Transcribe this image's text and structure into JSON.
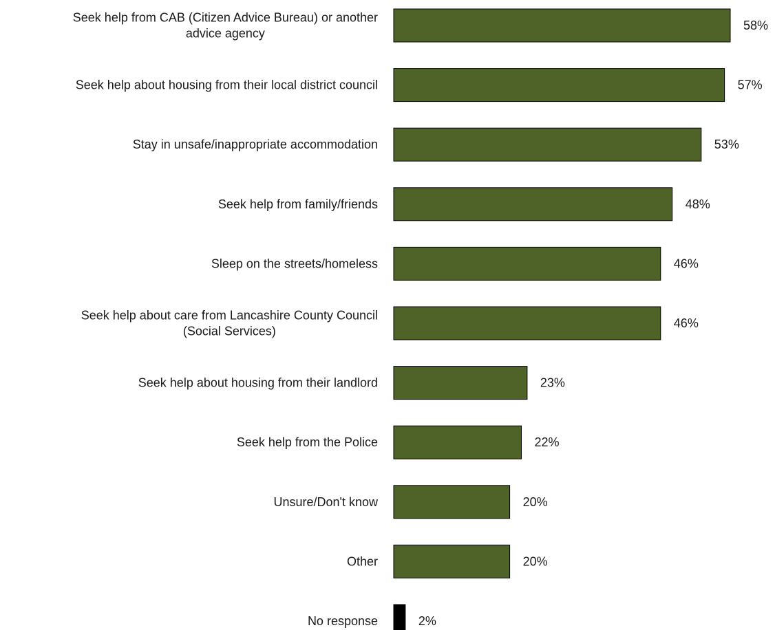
{
  "chart_data": {
    "type": "bar",
    "orientation": "horizontal",
    "categories": [
      "Seek help from CAB (Citizen Advice Bureau) or another advice agency",
      "Seek help about housing from their local district council",
      "Stay in unsafe/inappropriate accommodation",
      "Seek help from family/friends",
      "Sleep on the streets/homeless",
      "Seek help about care from Lancashire County Council (Social Services)",
      "Seek help about housing from their landlord",
      "Seek help from the Police",
      "Unsure/Don't know",
      "Other",
      "No response"
    ],
    "category_lines": [
      [
        "Seek help from CAB (Citizen Advice Bureau) or another",
        "advice agency"
      ],
      [
        "Seek help about housing from their local district council"
      ],
      [
        "Stay in unsafe/inappropriate accommodation"
      ],
      [
        "Seek help from family/friends"
      ],
      [
        "Sleep on the streets/homeless"
      ],
      [
        "Seek help about care from Lancashire County Council",
        "(Social Services)"
      ],
      [
        "Seek help about housing from their landlord"
      ],
      [
        "Seek help from the Police"
      ],
      [
        "Unsure/Don't know"
      ],
      [
        "Other"
      ],
      [
        "No response"
      ]
    ],
    "values": [
      58,
      57,
      53,
      48,
      46,
      46,
      23,
      22,
      20,
      20,
      2
    ],
    "value_labels": [
      "58%",
      "57%",
      "53%",
      "48%",
      "46%",
      "46%",
      "23%",
      "22%",
      "20%",
      "20%",
      "2%"
    ],
    "bar_colors": [
      "#4f6228",
      "#4f6228",
      "#4f6228",
      "#4f6228",
      "#4f6228",
      "#4f6228",
      "#4f6228",
      "#4f6228",
      "#4f6228",
      "#4f6228",
      "#000000"
    ],
    "xlim": [
      0,
      60
    ],
    "grid": false,
    "legend": "none"
  }
}
